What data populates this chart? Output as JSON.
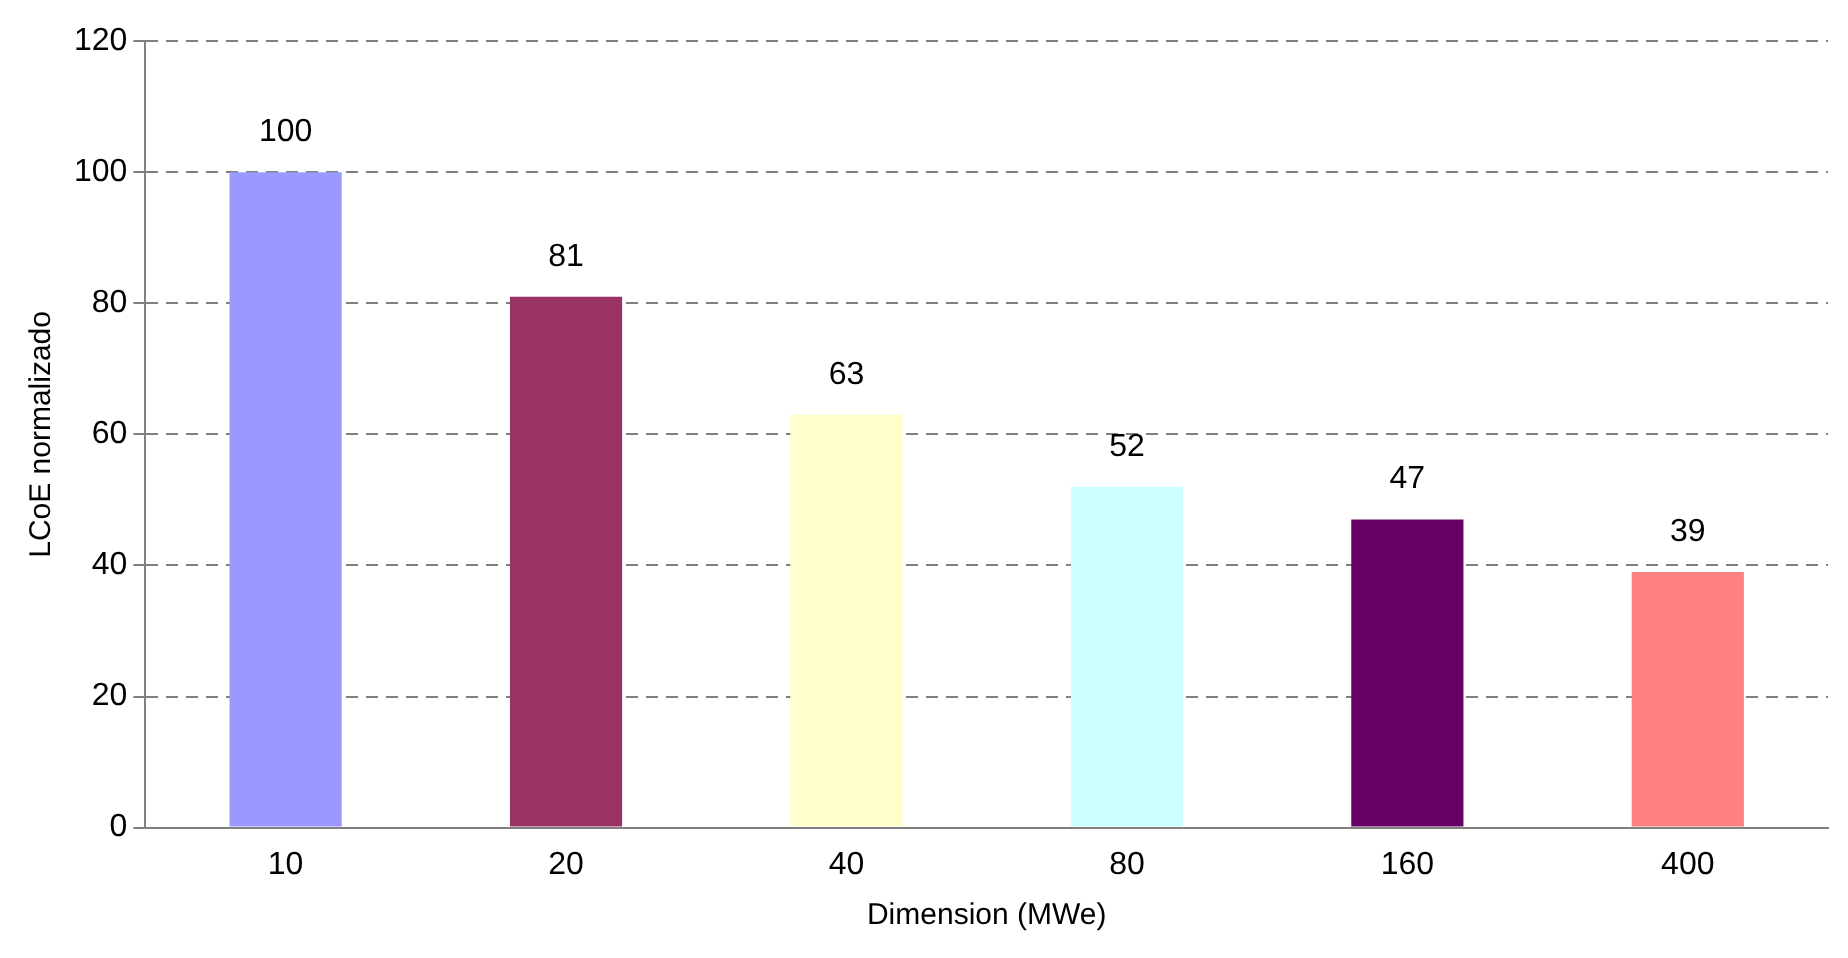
{
  "chart_data": {
    "type": "bar",
    "xlabel": "Dimension (MWe)",
    "ylabel": "LCoE normalizado",
    "categories": [
      "10",
      "20",
      "40",
      "80",
      "160",
      "400"
    ],
    "values": [
      100,
      81,
      63,
      52,
      47,
      39
    ],
    "colors": [
      "#9999ff",
      "#993366",
      "#ffffcc",
      "#ccffff",
      "#660066",
      "#ff8080"
    ],
    "ylim": [
      0,
      120
    ],
    "yticks": [
      0,
      20,
      40,
      60,
      80,
      100,
      120
    ],
    "grid": "y",
    "legend": false,
    "data_labels": true
  }
}
